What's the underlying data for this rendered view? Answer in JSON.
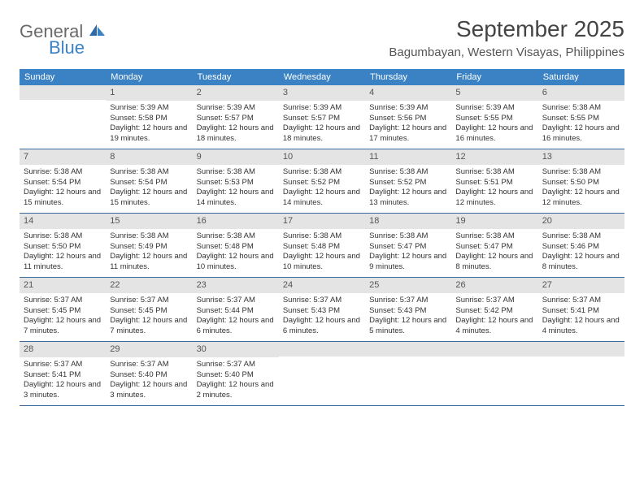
{
  "logo": {
    "line1": "General",
    "line2": "Blue"
  },
  "title": "September 2025",
  "location": "Bagumbayan, Western Visayas, Philippines",
  "colors": {
    "header_bg": "#3b82c4",
    "header_text": "#ffffff",
    "daynum_bg": "#e4e4e4",
    "daynum_text": "#555555",
    "body_text": "#333333",
    "rule": "#3b6a9a",
    "logo_gray": "#6a6a6a",
    "logo_blue": "#3b82c4"
  },
  "daysOfWeek": [
    "Sunday",
    "Monday",
    "Tuesday",
    "Wednesday",
    "Thursday",
    "Friday",
    "Saturday"
  ],
  "weeks": [
    [
      {
        "n": "",
        "sr": "",
        "ss": "",
        "dl": ""
      },
      {
        "n": "1",
        "sr": "Sunrise: 5:39 AM",
        "ss": "Sunset: 5:58 PM",
        "dl": "Daylight: 12 hours and 19 minutes."
      },
      {
        "n": "2",
        "sr": "Sunrise: 5:39 AM",
        "ss": "Sunset: 5:57 PM",
        "dl": "Daylight: 12 hours and 18 minutes."
      },
      {
        "n": "3",
        "sr": "Sunrise: 5:39 AM",
        "ss": "Sunset: 5:57 PM",
        "dl": "Daylight: 12 hours and 18 minutes."
      },
      {
        "n": "4",
        "sr": "Sunrise: 5:39 AM",
        "ss": "Sunset: 5:56 PM",
        "dl": "Daylight: 12 hours and 17 minutes."
      },
      {
        "n": "5",
        "sr": "Sunrise: 5:39 AM",
        "ss": "Sunset: 5:55 PM",
        "dl": "Daylight: 12 hours and 16 minutes."
      },
      {
        "n": "6",
        "sr": "Sunrise: 5:38 AM",
        "ss": "Sunset: 5:55 PM",
        "dl": "Daylight: 12 hours and 16 minutes."
      }
    ],
    [
      {
        "n": "7",
        "sr": "Sunrise: 5:38 AM",
        "ss": "Sunset: 5:54 PM",
        "dl": "Daylight: 12 hours and 15 minutes."
      },
      {
        "n": "8",
        "sr": "Sunrise: 5:38 AM",
        "ss": "Sunset: 5:54 PM",
        "dl": "Daylight: 12 hours and 15 minutes."
      },
      {
        "n": "9",
        "sr": "Sunrise: 5:38 AM",
        "ss": "Sunset: 5:53 PM",
        "dl": "Daylight: 12 hours and 14 minutes."
      },
      {
        "n": "10",
        "sr": "Sunrise: 5:38 AM",
        "ss": "Sunset: 5:52 PM",
        "dl": "Daylight: 12 hours and 14 minutes."
      },
      {
        "n": "11",
        "sr": "Sunrise: 5:38 AM",
        "ss": "Sunset: 5:52 PM",
        "dl": "Daylight: 12 hours and 13 minutes."
      },
      {
        "n": "12",
        "sr": "Sunrise: 5:38 AM",
        "ss": "Sunset: 5:51 PM",
        "dl": "Daylight: 12 hours and 12 minutes."
      },
      {
        "n": "13",
        "sr": "Sunrise: 5:38 AM",
        "ss": "Sunset: 5:50 PM",
        "dl": "Daylight: 12 hours and 12 minutes."
      }
    ],
    [
      {
        "n": "14",
        "sr": "Sunrise: 5:38 AM",
        "ss": "Sunset: 5:50 PM",
        "dl": "Daylight: 12 hours and 11 minutes."
      },
      {
        "n": "15",
        "sr": "Sunrise: 5:38 AM",
        "ss": "Sunset: 5:49 PM",
        "dl": "Daylight: 12 hours and 11 minutes."
      },
      {
        "n": "16",
        "sr": "Sunrise: 5:38 AM",
        "ss": "Sunset: 5:48 PM",
        "dl": "Daylight: 12 hours and 10 minutes."
      },
      {
        "n": "17",
        "sr": "Sunrise: 5:38 AM",
        "ss": "Sunset: 5:48 PM",
        "dl": "Daylight: 12 hours and 10 minutes."
      },
      {
        "n": "18",
        "sr": "Sunrise: 5:38 AM",
        "ss": "Sunset: 5:47 PM",
        "dl": "Daylight: 12 hours and 9 minutes."
      },
      {
        "n": "19",
        "sr": "Sunrise: 5:38 AM",
        "ss": "Sunset: 5:47 PM",
        "dl": "Daylight: 12 hours and 8 minutes."
      },
      {
        "n": "20",
        "sr": "Sunrise: 5:38 AM",
        "ss": "Sunset: 5:46 PM",
        "dl": "Daylight: 12 hours and 8 minutes."
      }
    ],
    [
      {
        "n": "21",
        "sr": "Sunrise: 5:37 AM",
        "ss": "Sunset: 5:45 PM",
        "dl": "Daylight: 12 hours and 7 minutes."
      },
      {
        "n": "22",
        "sr": "Sunrise: 5:37 AM",
        "ss": "Sunset: 5:45 PM",
        "dl": "Daylight: 12 hours and 7 minutes."
      },
      {
        "n": "23",
        "sr": "Sunrise: 5:37 AM",
        "ss": "Sunset: 5:44 PM",
        "dl": "Daylight: 12 hours and 6 minutes."
      },
      {
        "n": "24",
        "sr": "Sunrise: 5:37 AM",
        "ss": "Sunset: 5:43 PM",
        "dl": "Daylight: 12 hours and 6 minutes."
      },
      {
        "n": "25",
        "sr": "Sunrise: 5:37 AM",
        "ss": "Sunset: 5:43 PM",
        "dl": "Daylight: 12 hours and 5 minutes."
      },
      {
        "n": "26",
        "sr": "Sunrise: 5:37 AM",
        "ss": "Sunset: 5:42 PM",
        "dl": "Daylight: 12 hours and 4 minutes."
      },
      {
        "n": "27",
        "sr": "Sunrise: 5:37 AM",
        "ss": "Sunset: 5:41 PM",
        "dl": "Daylight: 12 hours and 4 minutes."
      }
    ],
    [
      {
        "n": "28",
        "sr": "Sunrise: 5:37 AM",
        "ss": "Sunset: 5:41 PM",
        "dl": "Daylight: 12 hours and 3 minutes."
      },
      {
        "n": "29",
        "sr": "Sunrise: 5:37 AM",
        "ss": "Sunset: 5:40 PM",
        "dl": "Daylight: 12 hours and 3 minutes."
      },
      {
        "n": "30",
        "sr": "Sunrise: 5:37 AM",
        "ss": "Sunset: 5:40 PM",
        "dl": "Daylight: 12 hours and 2 minutes."
      },
      {
        "n": "",
        "sr": "",
        "ss": "",
        "dl": ""
      },
      {
        "n": "",
        "sr": "",
        "ss": "",
        "dl": ""
      },
      {
        "n": "",
        "sr": "",
        "ss": "",
        "dl": ""
      },
      {
        "n": "",
        "sr": "",
        "ss": "",
        "dl": ""
      }
    ]
  ]
}
